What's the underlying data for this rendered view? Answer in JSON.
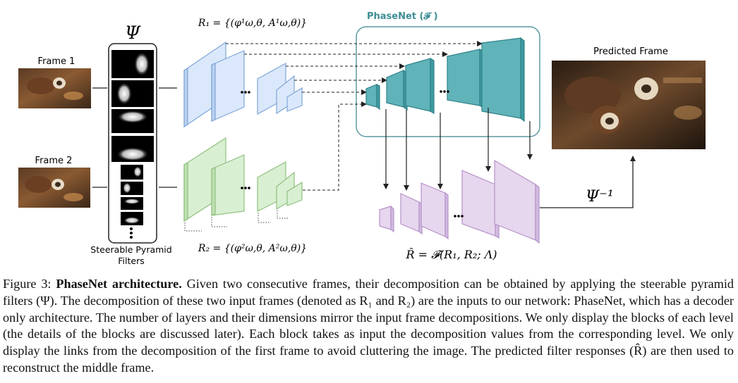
{
  "figure": {
    "frame1_label": "Frame 1",
    "frame2_label": "Frame 2",
    "psi_symbol": "Ψ",
    "filters_label_line1": "Steerable Pyramid",
    "filters_label_line2": "Filters",
    "r1_formula": "R₁ = {(φ¹ω,θ, A¹ω,θ)}",
    "r2_formula": "R₂ = {(φ²ω,θ, A²ω,θ)}",
    "phasenet_label": "PhaseNet (𝓕 )",
    "predicted_label": "Predicted Frame",
    "psi_inverse": "Ψ⁻¹",
    "rhat_formula": "R̂ = 𝓕(R₁, R₂; Λ)",
    "colors": {
      "blue_fill": "#dbe8fb",
      "blue_stroke": "#7ea6d8",
      "green_fill": "#d9efd2",
      "green_stroke": "#8fc07e",
      "teal_fill": "#5fb3b9",
      "teal_stroke": "#2f8288",
      "purple_fill": "#e6d6ee",
      "purple_stroke": "#b592c8",
      "phasenet_box": "#5b9aa0"
    }
  },
  "caption": {
    "prefix": "Figure 3: ",
    "bold": "PhaseNet architecture.",
    "text": " Given two consecutive frames, their decomposition can be obtained by applying the steerable pyramid filters (Ψ). The decomposition of these two input frames (denoted as R₁ and R₂) are the inputs to our network: PhaseNet, which has a decoder only architecture. The number of layers and their dimensions mirror the input frame decompositions. We only display the blocks of each level (the details of the blocks are discussed later). Each block takes as input the decomposition values from the corresponding level. We only display the links from the decomposition of the first frame to avoid cluttering the image. The predicted filter responses (R̂) are then used to reconstruct the middle frame."
  }
}
